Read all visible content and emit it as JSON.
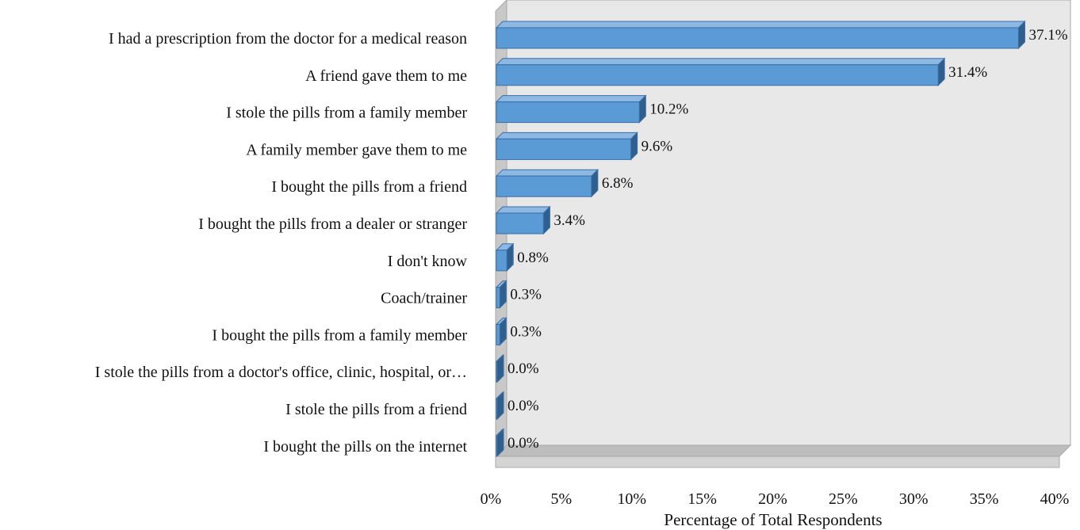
{
  "chart_data": {
    "type": "bar",
    "orientation": "horizontal",
    "style": "3d",
    "title": "",
    "xlabel": "Percentage of Total Respondents",
    "ylabel": "",
    "xlim": [
      0,
      40
    ],
    "x_ticks": [
      0,
      5,
      10,
      15,
      20,
      25,
      30,
      35,
      40
    ],
    "x_tick_labels": [
      "0%",
      "5%",
      "10%",
      "15%",
      "20%",
      "25%",
      "30%",
      "35%",
      "40%"
    ],
    "categories": [
      "I had a prescription from the doctor for a medical reason",
      "A friend gave them to me",
      "I stole the pills from a family member",
      "A family member gave them to me",
      "I bought the pills from a friend",
      "I bought the pills from a dealer or stranger",
      "I don't know",
      "Coach/trainer",
      "I bought the pills from a family member",
      "I stole the pills from a doctor's office, clinic, hospital, or…",
      "I stole the pills from a friend",
      "I bought the pills on the internet"
    ],
    "values": [
      37.1,
      31.4,
      10.2,
      9.6,
      6.8,
      3.4,
      0.8,
      0.3,
      0.3,
      0.0,
      0.0,
      0.0
    ],
    "value_labels": [
      "37.1%",
      "31.4%",
      "10.2%",
      "9.6%",
      "6.8%",
      "3.4%",
      "0.8%",
      "0.3%",
      "0.3%",
      "0.0%",
      "0.0%",
      "0.0%"
    ],
    "grid": false,
    "legend": "none",
    "colors": {
      "bar_front": "#5b9bd5",
      "bar_top": "#8db8e4",
      "bar_side": "#2f5f8f",
      "bar_edge": "#3a6ea5",
      "plot_back": "#e8e8e8",
      "wall": "#c8c8c8",
      "floor": "#bdbdbd"
    }
  }
}
